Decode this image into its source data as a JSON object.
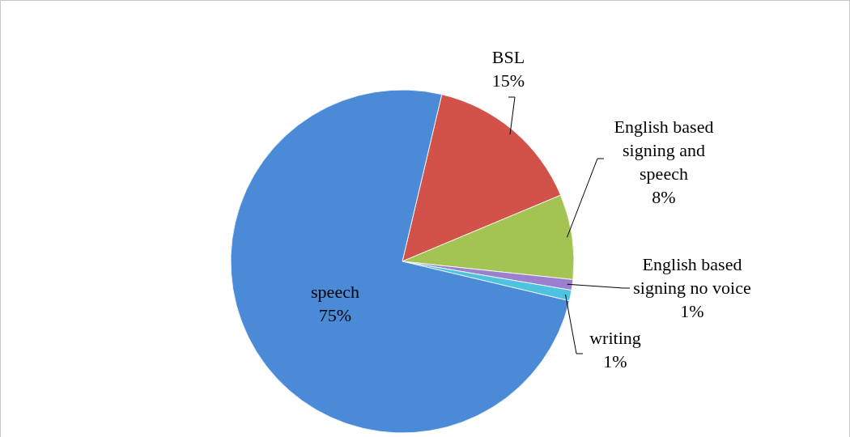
{
  "chart_data": {
    "type": "pie",
    "categories": [
      "BSL",
      "English based signing and speech",
      "English based signing no voice",
      "writing",
      "speech"
    ],
    "values": [
      15,
      8,
      1,
      1,
      75
    ],
    "value_labels": [
      "15%",
      "8%",
      "1%",
      "1%",
      "75%"
    ],
    "colors": [
      "#d2524a",
      "#a3c453",
      "#9a80cf",
      "#4ec3df",
      "#4a8ad6"
    ]
  }
}
